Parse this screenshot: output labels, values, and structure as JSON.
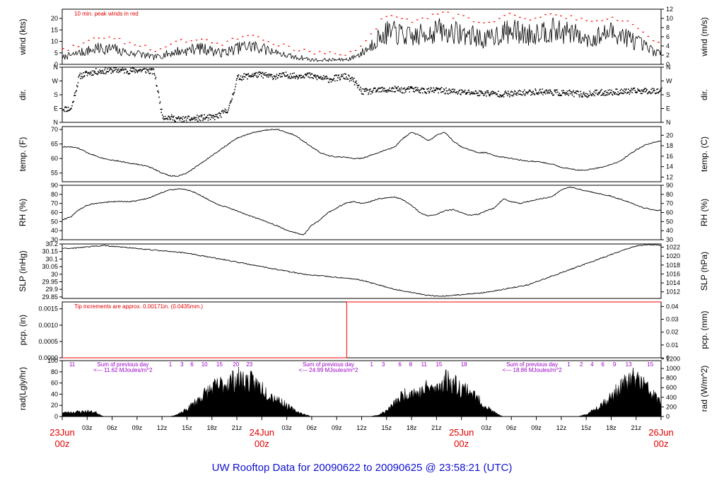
{
  "title": "UW Rooftop Data for 20090622  to  20090625 @ 23:58:21  (UTC)",
  "colors": {
    "line": "#000000",
    "peak": "#ff0000",
    "precip": "#ff0000",
    "note_red": "#e00000",
    "note_purple": "#9b00c8",
    "date": "#e00000",
    "title": "#1010d0"
  },
  "chart_data": {
    "type": "line",
    "x_axis": {
      "range_hours": [
        0,
        72
      ],
      "ticks": [
        {
          "h": 0,
          "label": ""
        },
        {
          "h": 3,
          "label": "03z"
        },
        {
          "h": 6,
          "label": "06z"
        },
        {
          "h": 9,
          "label": "09z"
        },
        {
          "h": 12,
          "label": "12z"
        },
        {
          "h": 15,
          "label": "15z"
        },
        {
          "h": 18,
          "label": "18z"
        },
        {
          "h": 21,
          "label": "21z"
        },
        {
          "h": 24,
          "label": ""
        },
        {
          "h": 27,
          "label": "03z"
        },
        {
          "h": 30,
          "label": "06z"
        },
        {
          "h": 33,
          "label": "09z"
        },
        {
          "h": 36,
          "label": "12z"
        },
        {
          "h": 39,
          "label": "15z"
        },
        {
          "h": 42,
          "label": "18z"
        },
        {
          "h": 45,
          "label": "21z"
        },
        {
          "h": 48,
          "label": ""
        },
        {
          "h": 51,
          "label": "03z"
        },
        {
          "h": 54,
          "label": "06z"
        },
        {
          "h": 57,
          "label": "09z"
        },
        {
          "h": 60,
          "label": "12z"
        },
        {
          "h": 63,
          "label": "15z"
        },
        {
          "h": 66,
          "label": "18z"
        },
        {
          "h": 69,
          "label": "21z"
        },
        {
          "h": 72,
          "label": ""
        }
      ],
      "dates": [
        {
          "h": 0,
          "day": "23Jun",
          "time": "00z"
        },
        {
          "h": 24,
          "day": "24Jun",
          "time": "00z"
        },
        {
          "h": 48,
          "day": "25Jun",
          "time": "00z"
        },
        {
          "h": 72,
          "day": "26Jun",
          "time": "00z"
        }
      ]
    },
    "panels": [
      {
        "id": "wind",
        "ylabel_left": "wind (kts)",
        "ylabel_right": "wind (m/s)",
        "ylim": [
          0,
          24
        ],
        "left_ticks": [
          0,
          5,
          10,
          15,
          20
        ],
        "right_ylim": [
          0,
          12
        ],
        "right_ticks": [
          0,
          2,
          4,
          6,
          8,
          10,
          12
        ],
        "annotation": "10 min. peak winds in red",
        "series_hourly": [
          3,
          4,
          5,
          6,
          7,
          7,
          7,
          6,
          5,
          5,
          4,
          3,
          4,
          5,
          6,
          6,
          7,
          7,
          6,
          5,
          6,
          7,
          8,
          8,
          7,
          6,
          5,
          4,
          3,
          3,
          2,
          2,
          2,
          2,
          2,
          3,
          5,
          8,
          12,
          14,
          14,
          13,
          12,
          13,
          14,
          15,
          15,
          14,
          14,
          13,
          12,
          11,
          13,
          14,
          15,
          14,
          13,
          14,
          15,
          15,
          14,
          14,
          13,
          12,
          12,
          13,
          14,
          13,
          12,
          10,
          8,
          6,
          5
        ],
        "series_name": ""
      },
      {
        "id": "dir",
        "ylabel_left": "dir.",
        "ylabel_right": "dir.",
        "ylim": [
          0,
          360
        ],
        "left_ticks": [
          {
            "v": 0,
            "label": "N"
          },
          {
            "v": 90,
            "label": "E"
          },
          {
            "v": 180,
            "label": "S"
          },
          {
            "v": 270,
            "label": "W"
          },
          {
            "v": 360,
            "label": "N"
          }
        ],
        "right_ticks": [
          {
            "v": 0,
            "label": "N"
          },
          {
            "v": 90,
            "label": "E"
          },
          {
            "v": 180,
            "label": "S"
          },
          {
            "v": 270,
            "label": "W"
          },
          {
            "v": 360,
            "label": "N"
          }
        ],
        "series_hourly": [
          90,
          85,
          300,
          320,
          330,
          335,
          340,
          340,
          335,
          340,
          340,
          330,
          40,
          30,
          20,
          20,
          25,
          30,
          30,
          50,
          90,
          290,
          300,
          310,
          310,
          300,
          300,
          310,
          300,
          310,
          300,
          290,
          280,
          290,
          300,
          270,
          200,
          200,
          210,
          210,
          215,
          210,
          215,
          210,
          205,
          210,
          205,
          200,
          195,
          195,
          190,
          190,
          185,
          185,
          185,
          190,
          195,
          200,
          200,
          195,
          190,
          190,
          185,
          180,
          190,
          195,
          195,
          200,
          200,
          205,
          205,
          205,
          210
        ]
      },
      {
        "id": "temp",
        "ylabel_left": "temp. (F)",
        "ylabel_right": "temp. (C)",
        "ylim": [
          52,
          71
        ],
        "left_ticks": [
          55,
          60,
          65,
          70
        ],
        "right_ylim": [
          11.11,
          21.67
        ],
        "right_ticks": [
          12,
          14,
          16,
          18,
          20
        ],
        "series_hourly": [
          64,
          64,
          63.5,
          62,
          61,
          60,
          59.5,
          59,
          58.5,
          58,
          57.5,
          56.5,
          55,
          54,
          54,
          55,
          57,
          59,
          61,
          63,
          65,
          67,
          68,
          69,
          69.5,
          70,
          70,
          69,
          68,
          66,
          64,
          62,
          61,
          60.5,
          60.5,
          60,
          60,
          61,
          62,
          63,
          64,
          67,
          69,
          68,
          66,
          68,
          69,
          66,
          64,
          63,
          62,
          62,
          61,
          60.5,
          60,
          59.5,
          59,
          59,
          58.5,
          58,
          57,
          56.5,
          56,
          56,
          56.5,
          57,
          58,
          59,
          61,
          63,
          64.5,
          65.5,
          66
        ]
      },
      {
        "id": "rh",
        "ylabel_left": "RH (%)",
        "ylabel_right": "RH (%)",
        "ylim": [
          30,
          90
        ],
        "left_ticks": [
          30,
          40,
          50,
          60,
          70,
          80,
          90
        ],
        "right_ylim": [
          30,
          90
        ],
        "right_ticks": [
          30,
          40,
          50,
          60,
          70,
          80,
          90
        ],
        "series_hourly": [
          52,
          55,
          63,
          68,
          70,
          71,
          72,
          72,
          72,
          73,
          75,
          78,
          82,
          85,
          86,
          85,
          82,
          77,
          72,
          68,
          65,
          62,
          58,
          55,
          52,
          48,
          45,
          40,
          38,
          35,
          46,
          52,
          60,
          65,
          70,
          72,
          70,
          72,
          75,
          76,
          77,
          74,
          68,
          60,
          56,
          58,
          62,
          63,
          60,
          57,
          58,
          62,
          65,
          75,
          72,
          70,
          72,
          74,
          76,
          78,
          85,
          88,
          86,
          84,
          82,
          80,
          78,
          75,
          72,
          68,
          65,
          63,
          62
        ]
      },
      {
        "id": "slp",
        "ylabel_left": "SLP (inHg)",
        "ylabel_right": "SLP (hPa)",
        "ylim": [
          29.84,
          30.2
        ],
        "left_ticks": [
          29.85,
          29.9,
          29.95,
          30.0,
          30.05,
          30.1,
          30.15,
          30.2
        ],
        "right_ylim": [
          1010.53,
          1022.72
        ],
        "right_ticks": [
          1012,
          1014,
          1016,
          1018,
          1020,
          1022
        ],
        "series_hourly": [
          30.17,
          30.17,
          30.175,
          30.18,
          30.185,
          30.19,
          30.185,
          30.18,
          30.175,
          30.17,
          30.165,
          30.16,
          30.155,
          30.15,
          30.145,
          30.14,
          30.13,
          30.12,
          30.11,
          30.1,
          30.09,
          30.08,
          30.07,
          30.06,
          30.05,
          30.04,
          30.03,
          30.02,
          30.01,
          30.0,
          29.995,
          29.99,
          29.985,
          29.98,
          29.975,
          29.97,
          29.96,
          29.945,
          29.93,
          29.915,
          29.9,
          29.89,
          29.88,
          29.87,
          29.86,
          29.855,
          29.855,
          29.86,
          29.865,
          29.87,
          29.875,
          29.88,
          29.89,
          29.9,
          29.91,
          29.92,
          29.93,
          29.95,
          29.97,
          29.99,
          30.01,
          30.03,
          30.05,
          30.07,
          30.09,
          30.11,
          30.13,
          30.15,
          30.17,
          30.185,
          30.195,
          30.195,
          30.19
        ]
      },
      {
        "id": "pcp",
        "ylabel_left": "pcp. (in)",
        "ylabel_right": "pcp. (mm)",
        "ylim": [
          0,
          0.00171
        ],
        "left_ticks": [
          {
            "v": 0,
            "label": "0.0000"
          },
          {
            "v": 0.0005,
            "label": "0.0005"
          },
          {
            "v": 0.001,
            "label": "0.0010"
          },
          {
            "v": 0.0015,
            "label": "0.0015"
          }
        ],
        "right_ylim": [
          0,
          0.0435
        ],
        "right_ticks": [
          {
            "v": 0,
            "label": "0"
          },
          {
            "v": 0.01,
            "label": "0.01"
          },
          {
            "v": 0.02,
            "label": "0.02"
          },
          {
            "v": 0.03,
            "label": "0.03"
          },
          {
            "v": 0.04,
            "label": "0.04"
          }
        ],
        "annotation": "Tip increments are approx. 0.00171in. (0.0435mm.)",
        "step_hour": 34.2,
        "value_before": 0,
        "value_after": 0.00171
      },
      {
        "id": "rad",
        "ylabel_left": "rad(Lgly/hr)",
        "ylabel_right": "rad (W/m^2)",
        "ylim": [
          0,
          100
        ],
        "left_ticks": [
          0,
          20,
          40,
          60,
          80,
          100
        ],
        "right_ylim": [
          0,
          1162.8
        ],
        "right_ticks": [
          0,
          200,
          400,
          600,
          800,
          1000,
          1200
        ],
        "series_hourly": [
          8,
          9,
          10,
          11,
          9,
          0,
          0,
          0,
          0,
          0,
          0,
          0,
          0,
          0,
          5,
          15,
          30,
          45,
          58,
          65,
          72,
          78,
          75,
          70,
          60,
          45,
          35,
          22,
          12,
          5,
          0,
          0,
          0,
          0,
          0,
          0,
          0,
          0,
          3,
          12,
          28,
          45,
          52,
          48,
          62,
          55,
          78,
          70,
          60,
          55,
          35,
          20,
          8,
          0,
          0,
          0,
          0,
          0,
          0,
          0,
          0,
          0,
          0,
          4,
          15,
          28,
          40,
          58,
          72,
          80,
          65,
          45,
          30,
          20,
          15
        ],
        "hour_labels": [
          {
            "h": 1.2,
            "label": "11"
          },
          {
            "h": 13.0,
            "label": "1"
          },
          {
            "h": 14.4,
            "label": "3"
          },
          {
            "h": 15.6,
            "label": "6"
          },
          {
            "h": 17.1,
            "label": "10"
          },
          {
            "h": 18.9,
            "label": "15"
          },
          {
            "h": 20.9,
            "label": "20"
          },
          {
            "h": 22.5,
            "label": "23"
          },
          {
            "h": 37.2,
            "label": "1"
          },
          {
            "h": 38.6,
            "label": "3"
          },
          {
            "h": 40.6,
            "label": "6"
          },
          {
            "h": 41.9,
            "label": "8"
          },
          {
            "h": 43.5,
            "label": "11"
          },
          {
            "h": 45.3,
            "label": "15"
          },
          {
            "h": 48.3,
            "label": "18"
          },
          {
            "h": 60.9,
            "label": "1"
          },
          {
            "h": 62.4,
            "label": "2"
          },
          {
            "h": 63.7,
            "label": "4"
          },
          {
            "h": 65.0,
            "label": "6"
          },
          {
            "h": 66.4,
            "label": "9"
          },
          {
            "h": 68.1,
            "label": "13"
          },
          {
            "h": 70.7,
            "label": "15"
          }
        ],
        "sums": [
          {
            "h": 7.3,
            "line1": "Sum of previous day",
            "line2": "<--- 11.62 MJoules/m^2"
          },
          {
            "h": 32.0,
            "line1": "Sum of previous day",
            "line2": "<--- 24.99 MJoules/m^2"
          },
          {
            "h": 56.5,
            "line1": "Sum of previous day",
            "line2": "<--- 18.86 MJoules/m^2"
          }
        ]
      }
    ]
  }
}
